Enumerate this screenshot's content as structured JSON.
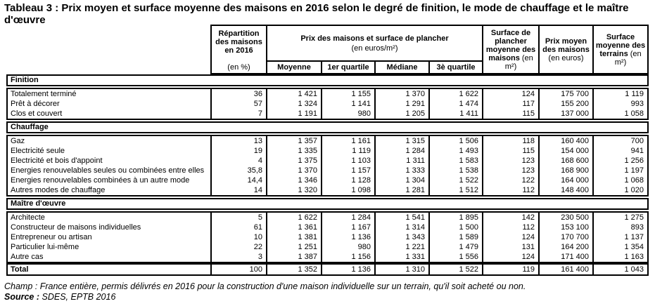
{
  "title": "Tableau 3 : Prix moyen et surface moyenne des maisons en 2016 selon le degré de finition, le mode de chauffage et le maître d'œuvre",
  "table": {
    "header": {
      "repartition": {
        "title": "Répartition des maisons en 2016",
        "unit": "(en %)"
      },
      "prix_group": {
        "title": "Prix des maisons et surface de plancher",
        "unit": "(en euros/m²)",
        "subcolumns": [
          "Moyenne",
          "1er quartile",
          "Médiane",
          "3è quartile"
        ]
      },
      "surface_plancher": {
        "title": "Surface de plancher moyenne des maisons",
        "unit": "(en m²)"
      },
      "prix_moyen": {
        "title": "Prix moyen des maisons",
        "unit": "(en euros)"
      },
      "surface_terrains": {
        "title": "Surface moyenne des terrains",
        "unit": "(en m²)"
      }
    },
    "sections": [
      {
        "label": "Finition",
        "rows": [
          {
            "label": "Totalement terminé",
            "values": [
              "36",
              "1 421",
              "1 155",
              "1 370",
              "1 622",
              "124",
              "175 700",
              "1 119"
            ]
          },
          {
            "label": "Prêt à décorer",
            "values": [
              "57",
              "1 324",
              "1 141",
              "1 291",
              "1 474",
              "117",
              "155 200",
              "993"
            ]
          },
          {
            "label": "Clos et couvert",
            "values": [
              "7",
              "1 191",
              "980",
              "1 205",
              "1 411",
              "115",
              "137 000",
              "1 058"
            ]
          }
        ]
      },
      {
        "label": "Chauffage",
        "rows": [
          {
            "label": "Gaz",
            "values": [
              "13",
              "1 357",
              "1 161",
              "1 315",
              "1 506",
              "118",
              "160 400",
              "700"
            ]
          },
          {
            "label": "Electricité seule",
            "values": [
              "19",
              "1 335",
              "1 119",
              "1 284",
              "1 493",
              "115",
              "154 000",
              "941"
            ]
          },
          {
            "label": "Electricité et bois d'appoint",
            "values": [
              "4",
              "1 375",
              "1 103",
              "1 311",
              "1 583",
              "123",
              "168 600",
              "1 256"
            ]
          },
          {
            "label": "Energies renouvelables seules ou combinées entre elles",
            "values": [
              "35,8",
              "1 370",
              "1 157",
              "1 333",
              "1 538",
              "123",
              "168 900",
              "1 197"
            ]
          },
          {
            "label": "Energies renouvelables combinées à un autre mode",
            "values": [
              "14,4",
              "1 346",
              "1 128",
              "1 304",
              "1 522",
              "122",
              "164 000",
              "1 068"
            ]
          },
          {
            "label": "Autres modes de chauffage",
            "values": [
              "14",
              "1 320",
              "1 098",
              "1 281",
              "1 512",
              "112",
              "148 400",
              "1 020"
            ]
          }
        ]
      },
      {
        "label": "Maître d'œuvre",
        "rows": [
          {
            "label": "Architecte",
            "values": [
              "5",
              "1 622",
              "1 284",
              "1 541",
              "1 895",
              "142",
              "230 500",
              "1 275"
            ]
          },
          {
            "label": "Constructeur de maisons individuelles",
            "values": [
              "61",
              "1 361",
              "1 167",
              "1 314",
              "1 500",
              "112",
              "153 100",
              "893"
            ]
          },
          {
            "label": "Entrepreneur ou artisan",
            "values": [
              "10",
              "1 381",
              "1 136",
              "1 343",
              "1 589",
              "124",
              "170 700",
              "1 137"
            ]
          },
          {
            "label": "Particulier lui-même",
            "values": [
              "22",
              "1 251",
              "980",
              "1 221",
              "1 479",
              "131",
              "164 200",
              "1 354"
            ]
          },
          {
            "label": "Autre cas",
            "values": [
              "3",
              "1 387",
              "1 156",
              "1 331",
              "1 556",
              "124",
              "171 400",
              "1 163"
            ]
          }
        ]
      }
    ],
    "total": {
      "label": "Total",
      "values": [
        "100",
        "1 352",
        "1 136",
        "1 310",
        "1 522",
        "119",
        "161 400",
        "1 043"
      ]
    }
  },
  "footer": {
    "champ_label": "Champ :",
    "champ_text": "France entière, permis délivrés en 2016 pour la construction d'une maison individuelle sur un terrain, qu'il soit acheté ou non.",
    "source_label": "Source :",
    "source_text": "SDES, EPTB 2016"
  }
}
